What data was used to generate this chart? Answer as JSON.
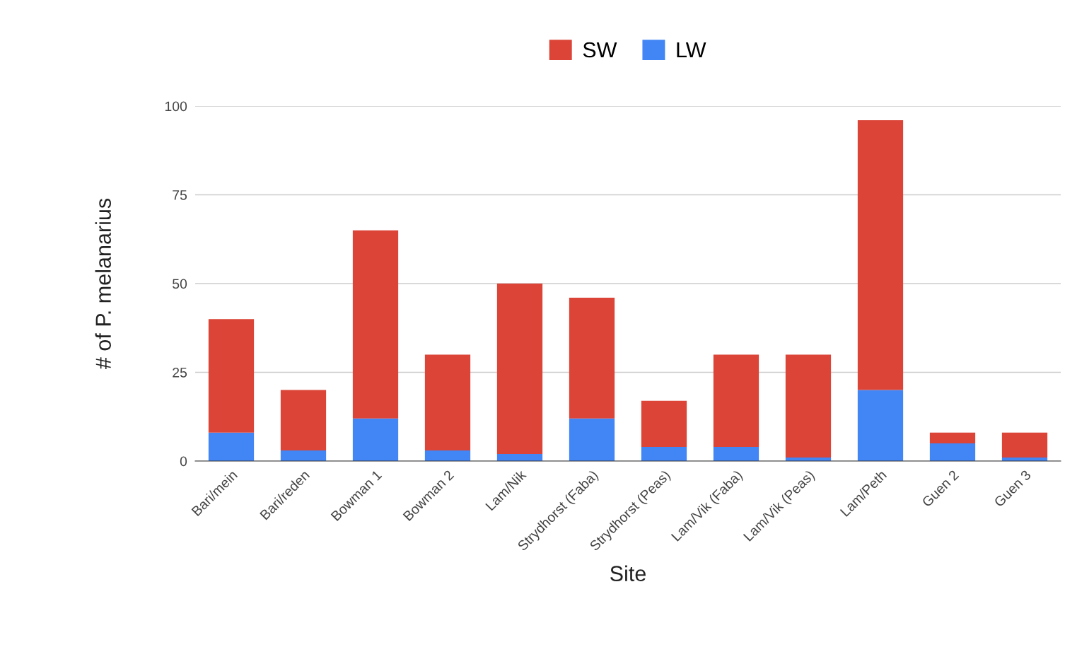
{
  "chart_data": {
    "type": "bar",
    "stacked": true,
    "xlabel": "Site",
    "ylabel": "# of P. melanarius",
    "categories": [
      "Bari/mein",
      "Bari/reden",
      "Bowman 1",
      "Bowman 2",
      "Lam/Nik",
      "Strydhorst (Faba)",
      "Strydhorst (Peas)",
      "Lam/Vik (Faba)",
      "Lam/Vik (Peas)",
      "Lam/Peth",
      "Guen 2",
      "Guen 3"
    ],
    "series": [
      {
        "name": "LW",
        "color": "#4285f4",
        "values": [
          8,
          3,
          12,
          3,
          2,
          12,
          4,
          4,
          1,
          20,
          5,
          1
        ]
      },
      {
        "name": "SW",
        "color": "#db4437",
        "values": [
          32,
          17,
          53,
          27,
          48,
          34,
          13,
          26,
          29,
          76,
          3,
          7
        ]
      }
    ],
    "ylim": [
      0,
      100
    ],
    "yticks": [
      0,
      25,
      50,
      75,
      100
    ],
    "grid": "y",
    "legend": "top"
  }
}
